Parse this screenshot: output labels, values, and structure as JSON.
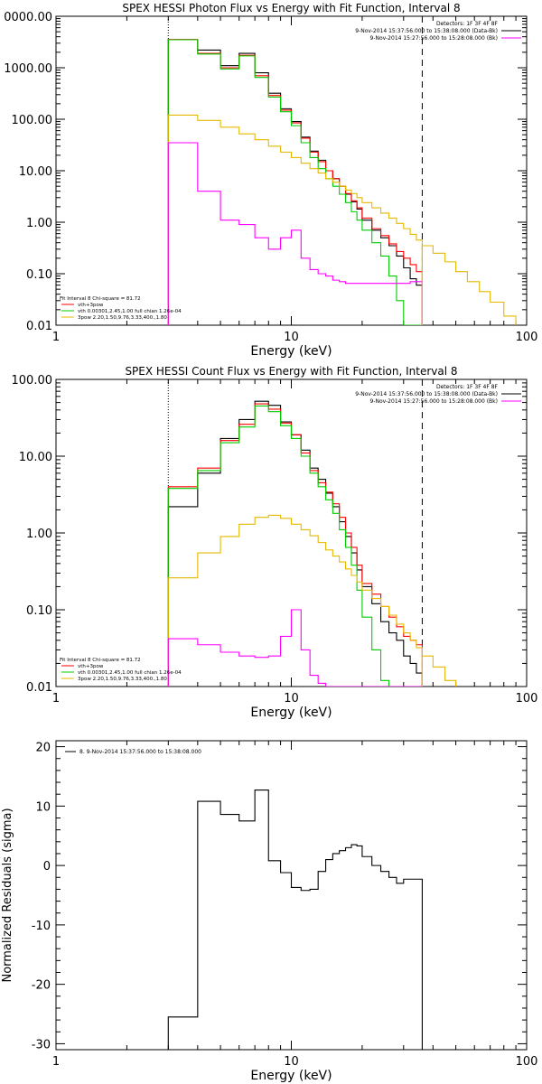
{
  "chart_data": [
    {
      "type": "line",
      "title": "SPEX HESSI Photon Flux vs Energy with Fit Function, Interval 8",
      "xlabel": "Energy (keV)",
      "ylabel": "",
      "xscale": "log",
      "yscale": "log",
      "xlim": [
        1,
        100
      ],
      "ylim": [
        0.01,
        10000
      ],
      "xticks": [
        "1",
        "10",
        "100"
      ],
      "yticks": [
        "0.01",
        "0.10",
        "1.00",
        "10.00",
        "100.00",
        "1000.00",
        "0000.00"
      ],
      "header": [
        "Detectors: 1F 3F 4F 8F",
        "9-Nov-2014 15:37:56.000 to 15:38:08.000 (Data-Bk)",
        "9-Nov-2014 15:27:56.000 to 15:28:08.000 (Bk)"
      ],
      "fit_legend": [
        "Fit Interval 8   Chi-square = 81.72",
        "vth+3pow",
        "vth 0.00301,2.45,1.00  full chian 1.26e-04",
        "3pow 2.20,1.50,9.76,3.33,400.,1.80"
      ],
      "vlines": [
        3.0,
        36.0
      ],
      "edges": [
        3.0,
        4.0,
        5.0,
        6.0,
        7.0,
        8.0,
        9.0,
        10.0,
        11.0,
        12.0,
        13.0,
        14.0,
        15.0,
        16.0,
        17.0,
        18.0,
        19.0,
        20.0,
        22.0,
        24.0,
        26.0,
        28.0,
        30.0,
        32.0,
        34.0,
        36.0
      ],
      "series": [
        {
          "color": "#000000",
          "values": [
            3500,
            2200,
            1100,
            1900,
            800,
            320,
            160,
            90,
            45,
            24,
            16,
            10,
            7,
            5,
            3.5,
            2.5,
            1.8,
            1.1,
            0.7,
            0.5,
            0.35,
            0.22,
            0.13,
            0.08,
            0.06
          ]
        },
        {
          "color": "#ff0000",
          "values": [
            3550,
            1900,
            1000,
            1750,
            700,
            290,
            150,
            85,
            43,
            23,
            15,
            10,
            7,
            5,
            3.6,
            2.6,
            1.9,
            1.2,
            0.75,
            0.55,
            0.38,
            0.27,
            0.2,
            0.15,
            0.11
          ]
        },
        {
          "color": "#00cc00",
          "values": [
            3500,
            1850,
            950,
            1700,
            650,
            270,
            140,
            75,
            35,
            18,
            11,
            7,
            5,
            3.5,
            2.4,
            1.6,
            1.1,
            0.7,
            0.4,
            0.22,
            0.09,
            0.03,
            0.01,
            0.01,
            0.01
          ]
        },
        {
          "color": "#e6b800",
          "values": [
            120,
            95,
            70,
            52,
            40,
            30,
            23,
            18,
            14,
            11,
            9,
            7,
            6,
            5,
            4.2,
            3.6,
            3.0,
            2.4,
            1.9,
            1.5,
            1.2,
            0.95,
            0.75,
            0.58,
            0.45
          ]
        },
        {
          "color": "#ff00ff",
          "values": [
            35,
            4,
            1.1,
            0.9,
            0.5,
            0.3,
            0.5,
            0.7,
            0.2,
            0.12,
            0.1,
            0.09,
            0.075,
            0.07,
            0.065,
            0.065,
            0.065,
            0.065,
            0.065,
            0.065,
            0.065,
            0.065,
            0.065,
            0.07,
            0.07
          ]
        }
      ],
      "tail": {
        "color": "#e6b800",
        "edges": [
          36,
          40,
          45,
          50,
          56,
          63,
          70,
          80,
          90
        ],
        "values": [
          0.35,
          0.25,
          0.17,
          0.11,
          0.07,
          0.045,
          0.028,
          0.015
        ]
      }
    },
    {
      "type": "line",
      "title": "SPEX HESSI Count Flux vs Energy with Fit Function, Interval 8",
      "xlabel": "Energy (keV)",
      "ylabel": "",
      "xscale": "log",
      "yscale": "log",
      "xlim": [
        1,
        100
      ],
      "ylim": [
        0.01,
        100
      ],
      "xticks": [
        "1",
        "10",
        "100"
      ],
      "yticks": [
        "0.01",
        "0.10",
        "1.00",
        "10.00",
        "100.00"
      ],
      "header": [
        "Detectors: 1F 3F 4F 8F",
        "9-Nov-2014 15:37:56.000 to 15:38:08.000 (Data-Bk)",
        "9-Nov-2014 15:27:56.000 to 15:28:08.000 (Bk)"
      ],
      "fit_legend": [
        "Fit Interval 8   Chi-square = 81.72",
        "vth+3pow",
        "vth 0.00301,2.45,1.00  full chian 1.26e-04",
        "3pow 2.20,1.50,9.76,3.33,400.,1.80"
      ],
      "vlines": [
        3.0,
        36.0
      ],
      "edges": [
        3.0,
        4.0,
        5.0,
        6.0,
        7.0,
        8.0,
        9.0,
        10.0,
        11.0,
        12.0,
        13.0,
        14.0,
        15.0,
        16.0,
        17.0,
        18.0,
        19.0,
        20.0,
        22.0,
        24.0,
        26.0,
        28.0,
        30.0,
        32.0,
        34.0,
        36.0
      ],
      "series": [
        {
          "color": "#000000",
          "values": [
            2.2,
            6,
            17,
            30,
            52,
            46,
            28,
            19,
            12,
            7,
            5,
            3.3,
            2.2,
            1.4,
            0.9,
            0.55,
            0.33,
            0.2,
            0.12,
            0.07,
            0.05,
            0.04,
            0.025,
            0.02,
            0.015
          ]
        },
        {
          "color": "#ff0000",
          "values": [
            4.0,
            7,
            16,
            26,
            48,
            41,
            27,
            19,
            11,
            6.5,
            4.5,
            3.4,
            2.4,
            1.6,
            1.0,
            0.65,
            0.38,
            0.22,
            0.16,
            0.11,
            0.08,
            0.06,
            0.045,
            0.04,
            0.035
          ]
        },
        {
          "color": "#00cc00",
          "values": [
            3.8,
            6.5,
            15,
            24,
            45,
            38,
            25,
            17,
            10,
            6,
            4,
            2.7,
            1.8,
            1.1,
            0.65,
            0.38,
            0.18,
            0.08,
            0.03,
            0.012,
            0.01,
            0.01,
            0.01,
            0.01,
            0.01
          ]
        },
        {
          "color": "#e6b800",
          "values": [
            0.26,
            0.55,
            0.9,
            1.3,
            1.6,
            1.7,
            1.55,
            1.3,
            1.1,
            0.92,
            0.75,
            0.6,
            0.5,
            0.42,
            0.34,
            0.28,
            0.23,
            0.18,
            0.14,
            0.11,
            0.085,
            0.065,
            0.05,
            0.04,
            0.032
          ]
        },
        {
          "color": "#ff00ff",
          "values": [
            0.042,
            0.035,
            0.028,
            0.025,
            0.024,
            0.025,
            0.045,
            0.1,
            0.03,
            0.014,
            0.011,
            0.01,
            0.01,
            0.01,
            0.01,
            0.01,
            0.01,
            0.01,
            0.01,
            0.01,
            0.01,
            0.01,
            0.01,
            0.01,
            0.01
          ]
        }
      ],
      "tail": {
        "color": "#e6b800",
        "edges": [
          36,
          40,
          45,
          50
        ],
        "values": [
          0.025,
          0.018,
          0.012
        ]
      }
    },
    {
      "type": "line",
      "title": "",
      "xlabel": "Energy (keV)",
      "ylabel": "Normalized Residuals (sigma)",
      "xscale": "log",
      "yscale": "linear",
      "xlim": [
        1,
        100
      ],
      "ylim": [
        -31,
        21
      ],
      "xticks": [
        "1",
        "10",
        "100"
      ],
      "yticks": [
        "-30",
        "-20",
        "-10",
        "0",
        "10",
        "20"
      ],
      "ytick_values": [
        -30,
        -20,
        -10,
        0,
        10,
        20
      ],
      "legend": [
        "8.  9-Nov-2014 15:37:56.000 to 15:38:08.000"
      ],
      "edges": [
        3.0,
        4.0,
        5.0,
        6.0,
        7.0,
        8.0,
        9.0,
        10.0,
        11.0,
        12.0,
        13.0,
        14.0,
        15.0,
        16.0,
        17.0,
        18.0,
        19.0,
        20.0,
        22.0,
        24.0,
        26.0,
        28.0,
        30.0,
        32.0,
        34.0,
        36.0
      ],
      "series": [
        {
          "color": "#000000",
          "values": [
            -25.5,
            10.8,
            8.6,
            7.5,
            12.7,
            0.8,
            -1.2,
            -3.7,
            -4.2,
            -4.0,
            -1.0,
            1.0,
            2.0,
            2.5,
            3.0,
            3.5,
            3.3,
            1.5,
            0,
            -1.0,
            -2.0,
            -3.0,
            -2.3,
            -2.3,
            -2.3
          ]
        }
      ]
    }
  ]
}
